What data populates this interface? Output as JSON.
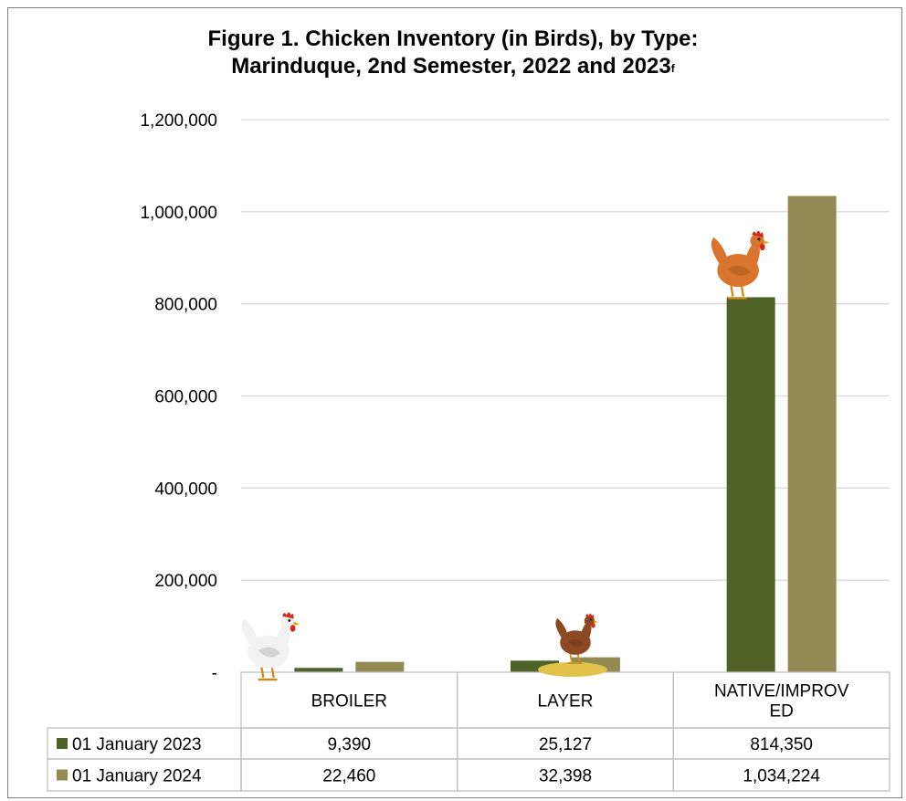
{
  "chart_data": {
    "type": "bar",
    "title_line1": "Figure 1. Chicken Inventory (in Birds), by Type:",
    "title_line2": "Marinduque, 2nd Semester, 2022 and 2023",
    "title_superscript": "f",
    "categories": [
      "BROILER",
      "LAYER",
      "NATIVE/IMPROVED"
    ],
    "category_labels": [
      [
        "BROILER"
      ],
      [
        "LAYER"
      ],
      [
        "NATIVE/IMPROV",
        "ED"
      ]
    ],
    "series": [
      {
        "name": "01 January 2023",
        "color": "#4f6228",
        "values": [
          9390,
          25127,
          814350
        ],
        "value_labels": [
          "9,390",
          "25,127",
          "814,350"
        ]
      },
      {
        "name": "01 January 2024",
        "color": "#948a54",
        "values": [
          22460,
          32398,
          1034224
        ],
        "value_labels": [
          "22,460",
          "32,398",
          "1,034,224"
        ]
      }
    ],
    "ylim": [
      0,
      1200000
    ],
    "yticks": [
      0,
      200000,
      400000,
      600000,
      800000,
      1000000,
      1200000
    ],
    "ytick_labels": [
      "-",
      "200,000",
      "400,000",
      "600,000",
      "800,000",
      "1,000,000",
      "1,200,000"
    ],
    "grid": true,
    "legend": "data-table",
    "gridline_color": "#d9d9d9",
    "table_border_color": "#bfbfbf",
    "icons": [
      "broiler-chicken-icon",
      "layer-hen-icon",
      "native-chicken-icon"
    ]
  }
}
